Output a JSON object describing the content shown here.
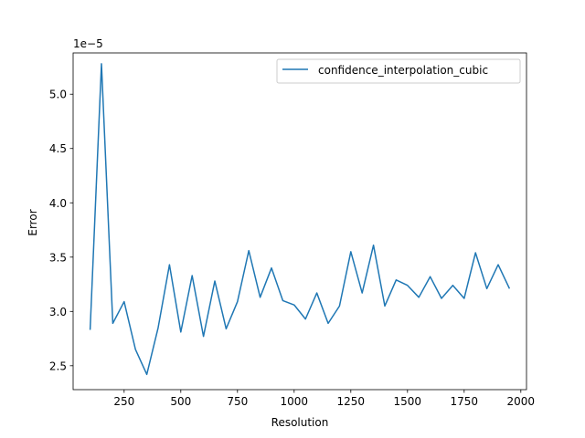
{
  "chart_data": {
    "type": "line",
    "title": "",
    "xlabel": "Resolution",
    "ylabel": "Error",
    "y_offset_label": "1e−5",
    "xlim": [
      25,
      2025
    ],
    "ylim": [
      2.28,
      5.38
    ],
    "x_ticks": [
      250,
      500,
      750,
      1000,
      1250,
      1500,
      1750,
      2000
    ],
    "x_tick_labels": [
      "250",
      "500",
      "750",
      "1000",
      "1250",
      "1500",
      "1750",
      "2000"
    ],
    "y_ticks": [
      2.5,
      3.0,
      3.5,
      4.0,
      4.5,
      5.0
    ],
    "y_tick_labels": [
      "2.5",
      "3.0",
      "3.5",
      "4.0",
      "4.5",
      "5.0"
    ],
    "grid": false,
    "legend_position": "top-right",
    "x": [
      100,
      150,
      200,
      250,
      300,
      350,
      400,
      450,
      500,
      550,
      600,
      650,
      700,
      750,
      800,
      850,
      900,
      950,
      1000,
      1050,
      1100,
      1150,
      1200,
      1250,
      1300,
      1350,
      1400,
      1450,
      1500,
      1550,
      1600,
      1650,
      1700,
      1750,
      1800,
      1850,
      1900,
      1950
    ],
    "series": [
      {
        "name": "confidence_interpolation_cubic",
        "color": "#1f77b4",
        "values": [
          2.83,
          5.28,
          2.89,
          3.09,
          2.65,
          2.42,
          2.85,
          3.43,
          2.81,
          3.33,
          2.77,
          3.28,
          2.84,
          3.09,
          3.56,
          3.13,
          3.4,
          3.1,
          3.06,
          2.93,
          3.17,
          2.89,
          3.05,
          3.55,
          3.17,
          3.61,
          3.05,
          3.29,
          3.24,
          3.13,
          3.32,
          3.12,
          3.24,
          3.12,
          3.54,
          3.21,
          3.43,
          3.21
        ]
      }
    ]
  }
}
